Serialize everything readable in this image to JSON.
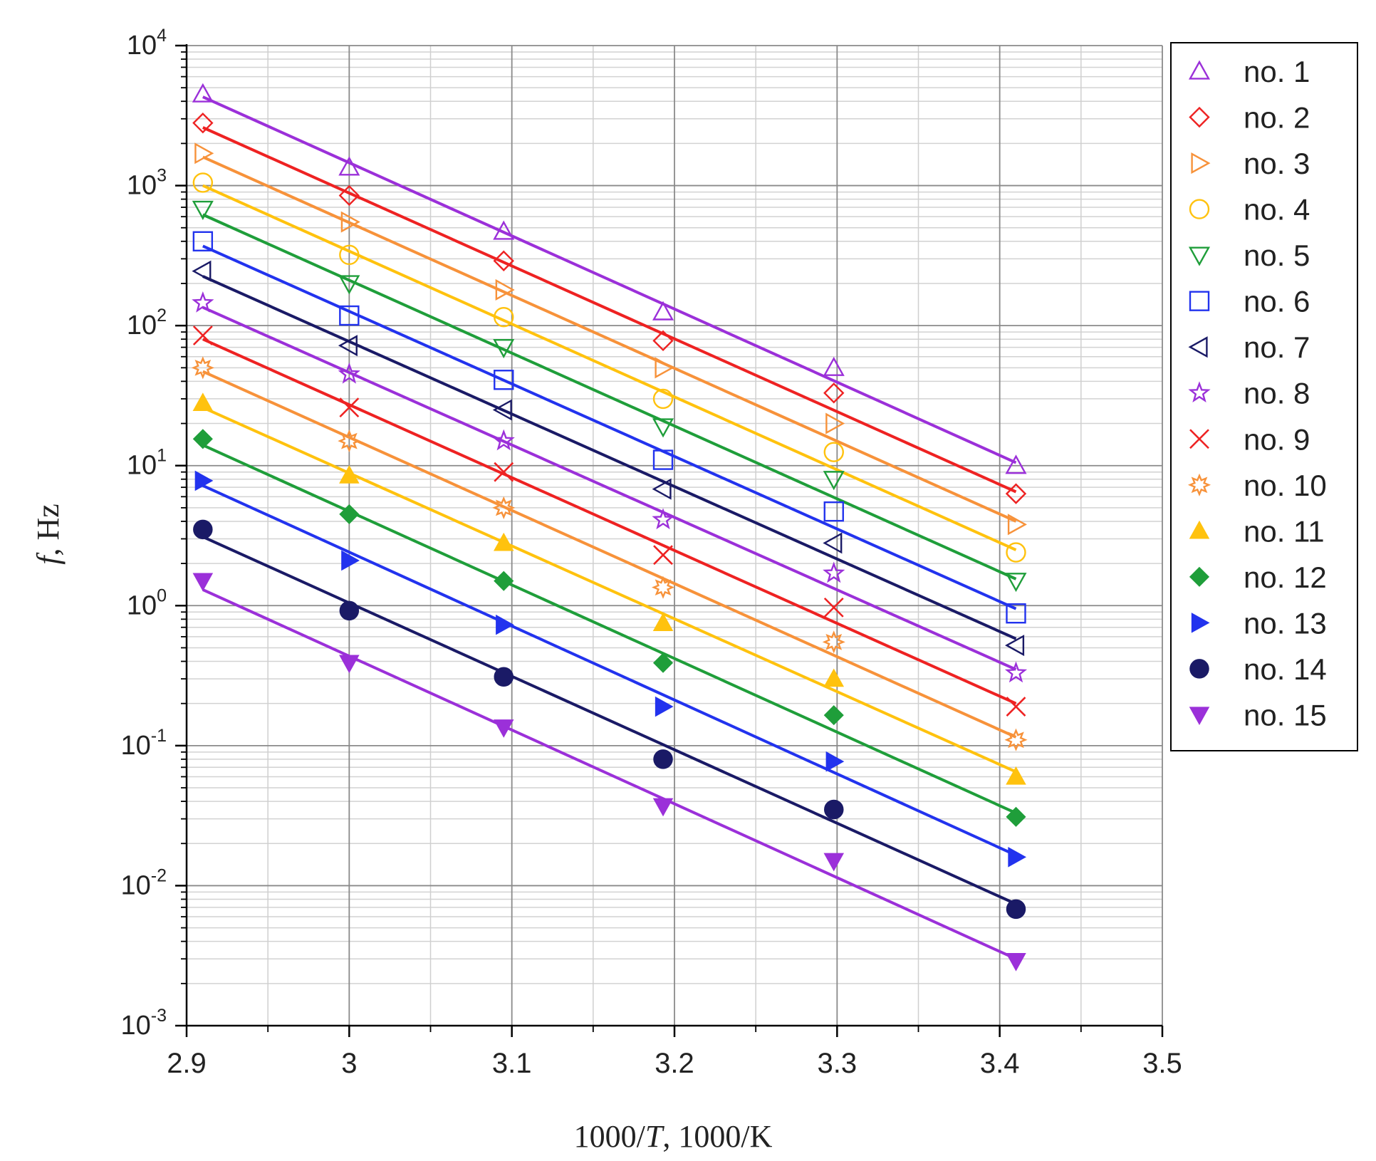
{
  "chart_data": {
    "type": "scatter",
    "title": "",
    "xlabel": "1000/T, 1000/K",
    "xlabel_parts": [
      "1000/",
      "T",
      ", 1000/K"
    ],
    "ylabel": "f, Hz",
    "ylabel_parts": [
      "f",
      ", Hz"
    ],
    "xlim": [
      2.9,
      3.5
    ],
    "ylim": [
      0.001,
      10000
    ],
    "yscale": "log",
    "grid": true,
    "legend_position": "right",
    "x_ticks": [
      "2.9",
      "3",
      "3.1",
      "3.2",
      "3.3",
      "3.4",
      "3.5"
    ],
    "y_ticks": [
      {
        "base": "10",
        "exp": "4"
      },
      {
        "base": "10",
        "exp": "3"
      },
      {
        "base": "10",
        "exp": "2"
      },
      {
        "base": "10",
        "exp": "1"
      },
      {
        "base": "10",
        "exp": "0"
      },
      {
        "base": "10",
        "exp": "-1"
      },
      {
        "base": "10",
        "exp": "-2"
      },
      {
        "base": "10",
        "exp": "-3"
      }
    ],
    "x": [
      2.91,
      3.0,
      3.095,
      3.193,
      3.298,
      3.41
    ],
    "series": [
      {
        "name": "no. 1",
        "marker": "triangle-up-open",
        "color": "#9b30d9",
        "values": [
          4500,
          1350,
          470,
          125,
          50,
          10
        ],
        "fit": [
          4300,
          10.5
        ]
      },
      {
        "name": "no. 2",
        "marker": "diamond-open",
        "color": "#ee2222",
        "values": [
          2800,
          850,
          290,
          78,
          33,
          6.3
        ],
        "fit": [
          2600,
          6.5
        ]
      },
      {
        "name": "no. 3",
        "marker": "triangle-right-open",
        "color": "#f7923a",
        "values": [
          1700,
          550,
          180,
          50,
          20,
          3.8
        ],
        "fit": [
          1600,
          4.0
        ]
      },
      {
        "name": "no. 4",
        "marker": "circle-open",
        "color": "#ffc20e",
        "values": [
          1050,
          320,
          115,
          30,
          12.5,
          2.4
        ],
        "fit": [
          1000,
          2.5
        ]
      },
      {
        "name": "no. 5",
        "marker": "triangle-down-open",
        "color": "#1f9e3a",
        "values": [
          680,
          200,
          70,
          19,
          8,
          1.5
        ],
        "fit": [
          620,
          1.55
        ]
      },
      {
        "name": "no. 6",
        "marker": "square-open",
        "color": "#2233ee",
        "values": [
          400,
          118,
          41,
          11,
          4.7,
          0.88
        ],
        "fit": [
          370,
          0.95
        ]
      },
      {
        "name": "no. 7",
        "marker": "triangle-left-open",
        "color": "#1a1a66",
        "values": [
          245,
          72,
          25,
          6.8,
          2.8,
          0.52
        ],
        "fit": [
          225,
          0.58
        ]
      },
      {
        "name": "no. 8",
        "marker": "star-open",
        "color": "#9b30d9",
        "values": [
          145,
          45,
          15,
          4.1,
          1.7,
          0.33
        ],
        "fit": [
          135,
          0.35
        ]
      },
      {
        "name": "no. 9",
        "marker": "x",
        "color": "#ee2222",
        "values": [
          85,
          26,
          9,
          2.3,
          0.97,
          0.19
        ],
        "fit": [
          80,
          0.2
        ]
      },
      {
        "name": "no. 10",
        "marker": "asterisk-open",
        "color": "#f7923a",
        "values": [
          50,
          15,
          5,
          1.35,
          0.55,
          0.11
        ],
        "fit": [
          47,
          0.115
        ]
      },
      {
        "name": "no. 11",
        "marker": "triangle-up-filled",
        "color": "#ffc20e",
        "values": [
          28,
          8.5,
          2.8,
          0.75,
          0.3,
          0.06
        ],
        "fit": [
          26,
          0.065
        ]
      },
      {
        "name": "no. 12",
        "marker": "diamond-filled",
        "color": "#1f9e3a",
        "values": [
          15.5,
          4.5,
          1.5,
          0.39,
          0.165,
          0.031
        ],
        "fit": [
          14,
          0.033
        ]
      },
      {
        "name": "no. 13",
        "marker": "triangle-right-filled",
        "color": "#2233ee",
        "values": [
          7.8,
          2.1,
          0.73,
          0.19,
          0.077,
          0.016
        ],
        "fit": [
          7.2,
          0.0165
        ]
      },
      {
        "name": "no. 14",
        "marker": "circle-filled",
        "color": "#1a1a66",
        "values": [
          3.5,
          0.92,
          0.31,
          0.08,
          0.035,
          0.0068
        ],
        "fit": [
          3.1,
          0.0074
        ]
      },
      {
        "name": "no. 15",
        "marker": "triangle-down-filled",
        "color": "#9b30d9",
        "values": [
          1.5,
          0.39,
          0.135,
          0.037,
          0.015,
          0.0029
        ],
        "fit": [
          1.3,
          0.003
        ]
      }
    ]
  }
}
